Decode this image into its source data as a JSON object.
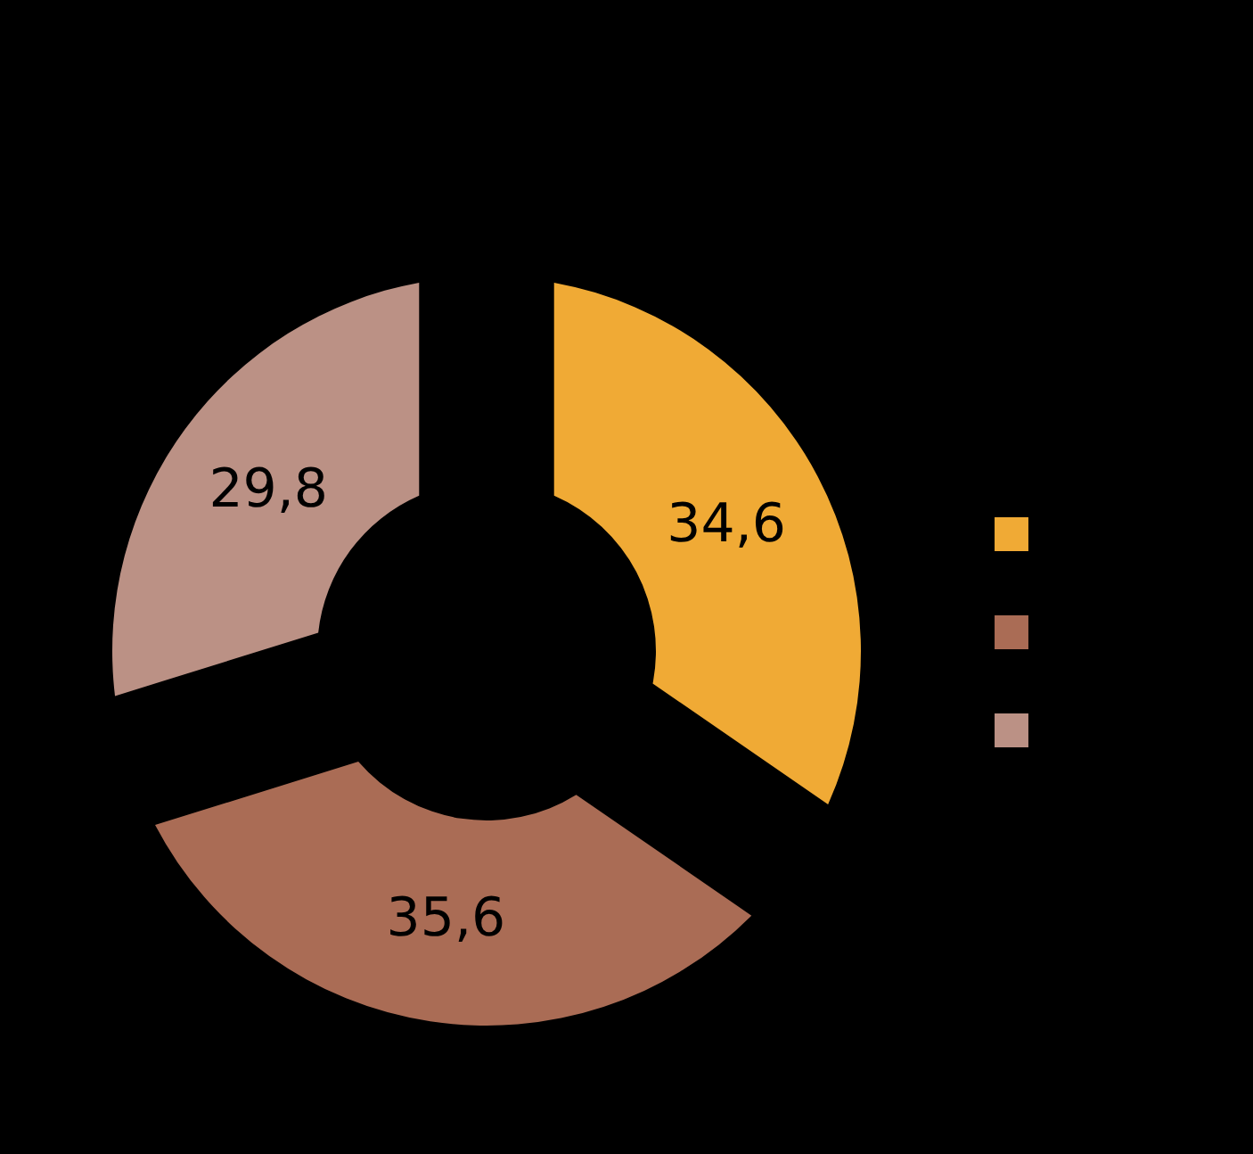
{
  "chart_data": {
    "type": "donut",
    "categories": [
      null,
      null,
      null
    ],
    "values": [
      34.6,
      35.6,
      29.8
    ],
    "colors": [
      "#f0aa35",
      "#aa6c55",
      "#bb9185"
    ],
    "value_labels": [
      "34,6",
      "35,6",
      "29,8"
    ]
  }
}
